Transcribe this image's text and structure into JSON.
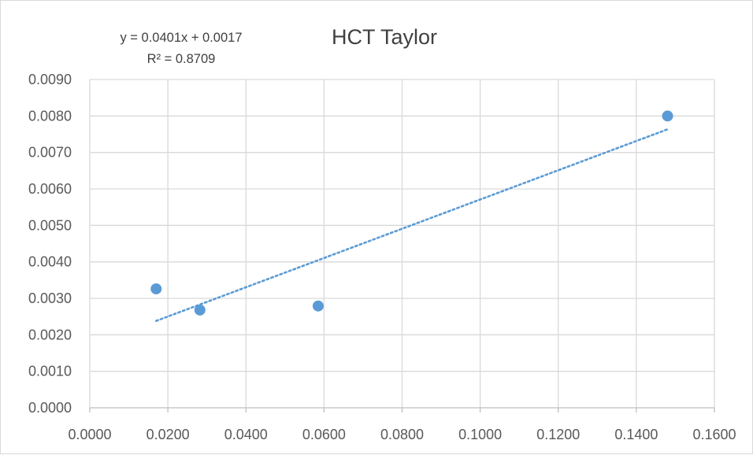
{
  "chart_data": {
    "type": "scatter",
    "title": "HCT Taylor",
    "xlabel": "",
    "ylabel": "",
    "xlim": [
      0,
      0.16
    ],
    "ylim": [
      0,
      0.009
    ],
    "x_ticks": [
      "0.0000",
      "0.0200",
      "0.0400",
      "0.0600",
      "0.0800",
      "0.1000",
      "0.1200",
      "0.1400",
      "0.1600"
    ],
    "y_ticks": [
      "0.0000",
      "0.0010",
      "0.0020",
      "0.0030",
      "0.0040",
      "0.0050",
      "0.0060",
      "0.0070",
      "0.0080",
      "0.0090"
    ],
    "grid": true,
    "legend": "none",
    "series": [
      {
        "color": "#5b9bd5",
        "points": [
          {
            "x": 0.017,
            "y": 0.00326
          },
          {
            "x": 0.0282,
            "y": 0.00268
          },
          {
            "x": 0.0585,
            "y": 0.00279
          },
          {
            "x": 0.148,
            "y": 0.008
          }
        ]
      }
    ],
    "trendline": {
      "type": "linear",
      "style": "dotted",
      "color": "#5b9bd5",
      "slope": 0.0401,
      "intercept": 0.0017,
      "x_range": [
        0.017,
        0.148
      ],
      "equation_label": "y = 0.0401x + 0.0017",
      "r2_label": "R² = 0.8709"
    }
  }
}
